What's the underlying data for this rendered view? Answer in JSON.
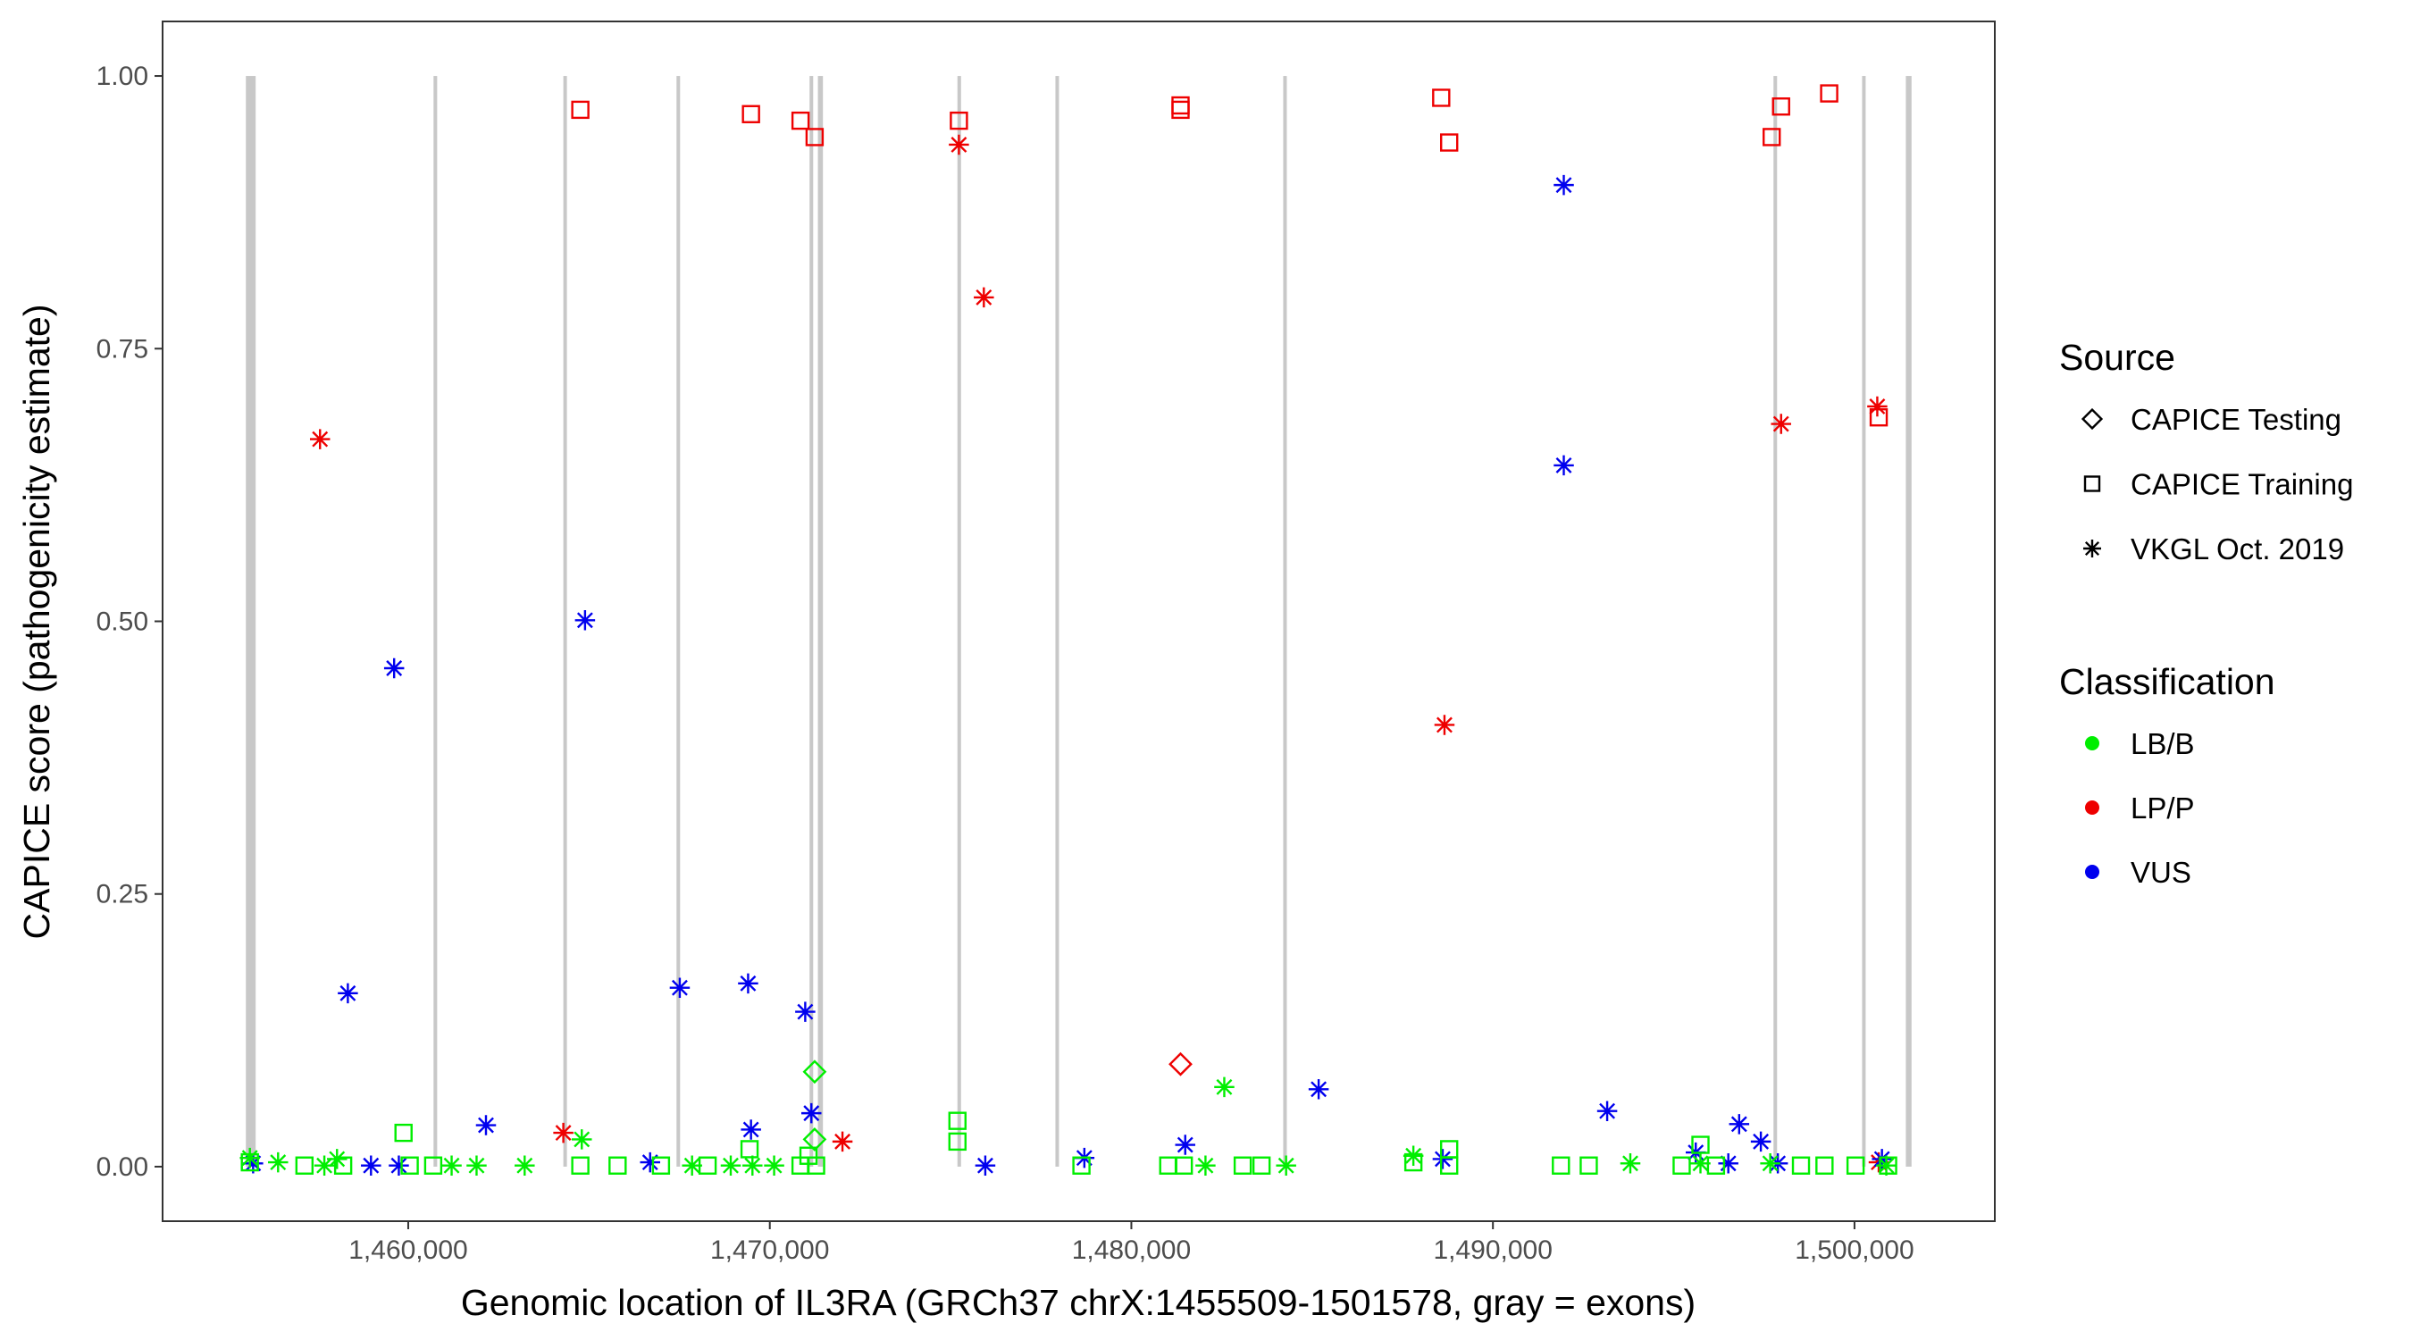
{
  "chart_data": {
    "type": "scatter",
    "xlabel": "Genomic location of IL3RA (GRCh37 chrX:1455509-1501578, gray = exons)",
    "ylabel": "CAPICE score (pathogenicity estimate)",
    "xlim": [
      1453206,
      1503881
    ],
    "ylim": [
      -0.05,
      1.05
    ],
    "x_ticks": [
      1460000,
      1470000,
      1480000,
      1490000,
      1500000
    ],
    "x_tick_labels": [
      "1,460,000",
      "1,470,000",
      "1,480,000",
      "1,490,000",
      "1,500,000"
    ],
    "y_ticks": [
      0,
      0.25,
      0.5,
      0.75,
      1.0
    ],
    "y_tick_labels": [
      "0.00",
      "0.25",
      "0.50",
      "0.75",
      "1.00"
    ],
    "grid": false,
    "legend_placement": "right",
    "exon_color": "#c8c8c8",
    "exons": [
      [
        1455509,
        1455780
      ],
      [
        1460700,
        1460800
      ],
      [
        1464290,
        1464380
      ],
      [
        1467420,
        1467510
      ],
      [
        1471100,
        1471200
      ],
      [
        1471330,
        1471470
      ],
      [
        1475190,
        1475280
      ],
      [
        1477900,
        1477980
      ],
      [
        1484200,
        1484290
      ],
      [
        1497760,
        1497850
      ],
      [
        1500210,
        1500300
      ],
      [
        1501420,
        1501578
      ]
    ],
    "legend": {
      "source_title": "Source",
      "sources": [
        {
          "key": "testing",
          "label": "CAPICE Testing",
          "shape": "diamond"
        },
        {
          "key": "training",
          "label": "CAPICE Training",
          "shape": "square"
        },
        {
          "key": "vkgl",
          "label": "VKGL Oct. 2019",
          "shape": "asterisk"
        }
      ],
      "classification_title": "Classification",
      "classes": [
        {
          "key": "LB/B",
          "label": "LB/B",
          "color": "#00ee00"
        },
        {
          "key": "LP/P",
          "label": "LP/P",
          "color": "#ee0000"
        },
        {
          "key": "VUS",
          "label": "VUS",
          "color": "#0000ee"
        }
      ]
    },
    "series": [
      {
        "source": "training",
        "class": "LP/P",
        "points": [
          [
            1464760,
            0.969
          ],
          [
            1469480,
            0.965
          ],
          [
            1470850,
            0.959
          ],
          [
            1471240,
            0.944
          ],
          [
            1475230,
            0.959
          ],
          [
            1481360,
            0.973
          ],
          [
            1481360,
            0.969
          ],
          [
            1488570,
            0.98
          ],
          [
            1488790,
            0.939
          ],
          [
            1497710,
            0.944
          ],
          [
            1497970,
            0.972
          ],
          [
            1499300,
            0.984
          ],
          [
            1500670,
            0.687
          ]
        ]
      },
      {
        "source": "vkgl",
        "class": "LP/P",
        "points": [
          [
            1457560,
            0.667
          ],
          [
            1475230,
            0.937
          ],
          [
            1475920,
            0.797
          ],
          [
            1464290,
            0.031
          ],
          [
            1472010,
            0.023
          ],
          [
            1488660,
            0.405
          ],
          [
            1497970,
            0.681
          ],
          [
            1500630,
            0.697
          ],
          [
            1500670,
            0.004
          ]
        ]
      },
      {
        "source": "testing",
        "class": "LP/P",
        "points": [
          [
            1481360,
            0.094
          ]
        ]
      },
      {
        "source": "vkgl",
        "class": "VUS",
        "points": [
          [
            1459610,
            0.457
          ],
          [
            1464890,
            0.501
          ],
          [
            1458330,
            0.159
          ],
          [
            1467510,
            0.164
          ],
          [
            1469400,
            0.168
          ],
          [
            1470980,
            0.142
          ],
          [
            1462150,
            0.038
          ],
          [
            1471150,
            0.049
          ],
          [
            1469480,
            0.034
          ],
          [
            1491960,
            0.9
          ],
          [
            1491960,
            0.643
          ],
          [
            1485180,
            0.071
          ],
          [
            1493160,
            0.051
          ],
          [
            1496810,
            0.039
          ],
          [
            1497410,
            0.023
          ],
          [
            1495610,
            0.013
          ],
          [
            1481490,
            0.02
          ],
          [
            1478700,
            0.008
          ],
          [
            1466690,
            0.004
          ],
          [
            1455710,
            0.003
          ],
          [
            1458970,
            0.001
          ],
          [
            1459740,
            0.001
          ],
          [
            1475960,
            0.001
          ],
          [
            1488610,
            0.007
          ],
          [
            1496510,
            0.003
          ],
          [
            1497880,
            0.003
          ],
          [
            1500760,
            0.007
          ]
        ]
      },
      {
        "source": "testing",
        "class": "LB/B",
        "points": [
          [
            1471240,
            0.087
          ],
          [
            1471240,
            0.025
          ]
        ]
      },
      {
        "source": "vkgl",
        "class": "LB/B",
        "points": [
          [
            1482570,
            0.073
          ],
          [
            1464800,
            0.025
          ],
          [
            1487800,
            0.01
          ],
          [
            1458030,
            0.007
          ],
          [
            1455620,
            0.008
          ],
          [
            1456400,
            0.004
          ],
          [
            1457680,
            0.001
          ],
          [
            1461200,
            0.001
          ],
          [
            1461890,
            0.001
          ],
          [
            1463220,
            0.001
          ],
          [
            1467850,
            0.001
          ],
          [
            1468920,
            0.001
          ],
          [
            1469520,
            0.001
          ],
          [
            1470120,
            0.001
          ],
          [
            1484280,
            0.001
          ],
          [
            1482050,
            0.001
          ],
          [
            1493800,
            0.003
          ],
          [
            1497670,
            0.003
          ],
          [
            1495740,
            0.003
          ],
          [
            1500880,
            0.001
          ]
        ]
      },
      {
        "source": "training",
        "class": "LB/B",
        "points": [
          [
            1459870,
            0.031
          ],
          [
            1475190,
            0.042
          ],
          [
            1475190,
            0.023
          ],
          [
            1469440,
            0.016
          ],
          [
            1488790,
            0.016
          ],
          [
            1495740,
            0.02
          ],
          [
            1487800,
            0.004
          ],
          [
            1455620,
            0.004
          ],
          [
            1457130,
            0.001
          ],
          [
            1458200,
            0.001
          ],
          [
            1460040,
            0.001
          ],
          [
            1460690,
            0.001
          ],
          [
            1464760,
            0.001
          ],
          [
            1465790,
            0.001
          ],
          [
            1466990,
            0.001
          ],
          [
            1468280,
            0.001
          ],
          [
            1470850,
            0.001
          ],
          [
            1471070,
            0.01
          ],
          [
            1471280,
            0.001
          ],
          [
            1478620,
            0.001
          ],
          [
            1481020,
            0.001
          ],
          [
            1481450,
            0.001
          ],
          [
            1483080,
            0.001
          ],
          [
            1483600,
            0.001
          ],
          [
            1488790,
            0.001
          ],
          [
            1491880,
            0.001
          ],
          [
            1492650,
            0.001
          ],
          [
            1495220,
            0.001
          ],
          [
            1496170,
            0.001
          ],
          [
            1498520,
            0.001
          ],
          [
            1499170,
            0.001
          ],
          [
            1500030,
            0.001
          ],
          [
            1500930,
            0.001
          ]
        ]
      }
    ]
  }
}
